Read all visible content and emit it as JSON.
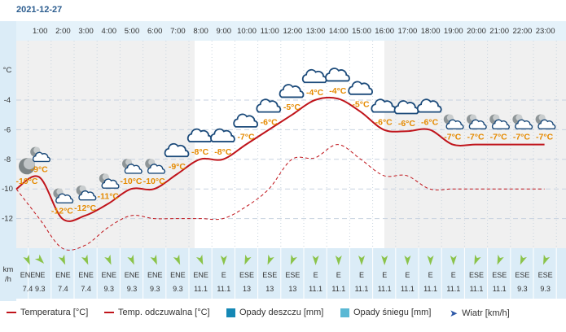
{
  "date": "2021-12-27",
  "colors": {
    "temp_line": "#c0141b",
    "feels_line": "#c0141b",
    "temp_label": "#e58a00",
    "rain": "#1588b5",
    "snow": "#5ab8d4",
    "wind_arrow": "#8bc34a",
    "header_bg": "#e5f2fa"
  },
  "chart_data": {
    "type": "line",
    "x": [
      "1:00",
      "2:00",
      "3:00",
      "4:00",
      "5:00",
      "6:00",
      "7:00",
      "8:00",
      "9:00",
      "10:00",
      "11:00",
      "12:00",
      "13:00",
      "14:00",
      "15:00",
      "16:00",
      "17:00",
      "18:00",
      "19:00",
      "20:00",
      "21:00",
      "22:00",
      "23:00"
    ],
    "y_axis_unit": "°C",
    "y_ticks": [
      "-4",
      "-6",
      "-8",
      "-10",
      "-12"
    ],
    "ylim": [
      -14,
      -2
    ],
    "series": [
      {
        "name": "Temperatura [°C]",
        "values": [
          -9.2,
          -12,
          -11.8,
          -11,
          -10,
          -10,
          -9,
          -8,
          -8,
          -7,
          -6,
          -5,
          -4,
          -3.9,
          -4.8,
          -6,
          -6.1,
          -6,
          -7,
          -7,
          -7,
          -7,
          -7
        ]
      },
      {
        "name": "Temp. odczuwalna [°C]",
        "values": [
          -12,
          -14,
          -13.8,
          -12.6,
          -11.8,
          -12,
          -12,
          -12,
          -12,
          -11.2,
          -10,
          -8,
          -7.9,
          -7,
          -8,
          -9.1,
          -9.1,
          -10,
          -10,
          -10,
          -10,
          -10,
          -10
        ]
      }
    ],
    "first_point": {
      "temp": -10,
      "feels": -10
    },
    "labels": [
      "-10°C",
      "-9°C",
      "-12°C",
      "-12°C",
      "-11°C",
      "-10°C",
      "-10°C",
      "-9°C",
      "-8°C",
      "-8°C",
      "-7°C",
      "-6°C",
      "-5°C",
      "-4°C",
      "-4°C",
      "-5°C",
      "-6°C",
      "-6°C",
      "-6°C",
      "-7°C",
      "-7°C",
      "-7°C",
      "-7°C",
      "-7°C"
    ],
    "icons": [
      "night-clear",
      "night-partly-cloudy",
      "night-cloudy",
      "night-cloudy",
      "night-partly-cloudy",
      "night-partly-cloudy",
      "night-partly-cloudy",
      "cloudy",
      "cloudy",
      "cloudy",
      "cloudy",
      "cloudy",
      "cloudy",
      "cloudy",
      "cloudy",
      "cloudy",
      "cloudy",
      "cloudy",
      "cloudy",
      "night-partly-cloudy",
      "night-partly-cloudy",
      "night-partly-cloudy",
      "night-partly-cloudy",
      "night-partly-cloudy"
    ]
  },
  "wind": {
    "unit_label": [
      "km",
      "/h"
    ],
    "directions": [
      "ENE",
      "NE",
      "ENE",
      "ENE",
      "ENE",
      "ENE",
      "ENE",
      "ENE",
      "ENE",
      "E",
      "ESE",
      "ESE",
      "ESE",
      "E",
      "E",
      "E",
      "E",
      "E",
      "E",
      "E",
      "ESE",
      "ESE",
      "ESE",
      "ESE"
    ],
    "speeds": [
      "7.4",
      "9.3",
      "7.4",
      "7.4",
      "9.3",
      "9.3",
      "9.3",
      "9.3",
      "11.1",
      "11.1",
      "13",
      "13",
      "13",
      "11.1",
      "11.1",
      "11.1",
      "11.1",
      "11.1",
      "11.1",
      "11.1",
      "11.1",
      "11.1",
      "9.3",
      "9.3"
    ]
  },
  "legend": {
    "temp": "Temperatura [°C]",
    "feels": "Temp. odczuwalna [°C]",
    "rain": "Opady deszczu [mm]",
    "snow": "Opady śniegu [mm]",
    "wind": "Wiatr [km/h]"
  }
}
